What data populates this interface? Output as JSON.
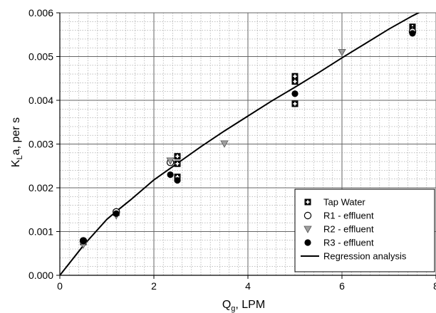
{
  "chart_data": {
    "type": "scatter",
    "title": "",
    "xlabel_main": "Q",
    "xlabel_sub": "g",
    "xlabel_rest": ", LPM",
    "ylabel_main": "K",
    "ylabel_sub": "L",
    "ylabel_rest": "a, per s",
    "xlim": [
      0,
      8
    ],
    "ylim": [
      0,
      0.006
    ],
    "x_ticks": [
      0,
      2,
      4,
      6,
      8
    ],
    "x_tick_labels": [
      "0",
      "2",
      "4",
      "6",
      "8"
    ],
    "y_ticks": [
      0,
      0.001,
      0.002,
      0.003,
      0.004,
      0.005,
      0.006
    ],
    "y_tick_labels": [
      "0.000",
      "0.001",
      "0.002",
      "0.003",
      "0.004",
      "0.005",
      "0.006"
    ],
    "grid": {
      "major": true,
      "minor": true,
      "minor_x_step": 0.2,
      "minor_y_step": 0.0002
    },
    "legend_position": "bottom-right",
    "series": [
      {
        "name": "Tap Water",
        "marker": "square-cross",
        "points": [
          [
            0.5,
            0.00076
          ],
          [
            1.2,
            0.00143
          ],
          [
            2.5,
            0.00272
          ],
          [
            2.5,
            0.00255
          ],
          [
            2.5,
            0.00225
          ],
          [
            5.0,
            0.00455
          ],
          [
            5.0,
            0.00443
          ],
          [
            5.0,
            0.00392
          ],
          [
            7.5,
            0.00568
          ],
          [
            7.5,
            0.00562
          ]
        ]
      },
      {
        "name": "R1 - effluent",
        "marker": "open-circle",
        "points": [
          [
            0.5,
            0.00079
          ],
          [
            1.2,
            0.00145
          ],
          [
            2.35,
            0.00258
          ],
          [
            7.5,
            0.00557
          ]
        ]
      },
      {
        "name": "R2 - effluent",
        "marker": "triangle-down",
        "points": [
          [
            0.5,
            0.0007
          ],
          [
            1.2,
            0.00137
          ],
          [
            2.35,
            0.00262
          ],
          [
            3.5,
            0.00301
          ],
          [
            6.0,
            0.0051
          ]
        ]
      },
      {
        "name": "R3 - effluent",
        "marker": "filled-circle",
        "points": [
          [
            0.5,
            0.00078
          ],
          [
            1.2,
            0.00141
          ],
          [
            2.35,
            0.0023
          ],
          [
            2.5,
            0.00217
          ],
          [
            5.0,
            0.00415
          ],
          [
            7.5,
            0.00553
          ]
        ]
      },
      {
        "name": "Regression analysis",
        "marker": "line",
        "points": [
          [
            0,
            0
          ],
          [
            0.5,
            0.00068
          ],
          [
            1.0,
            0.00128
          ],
          [
            1.2,
            0.00146
          ],
          [
            1.5,
            0.00172
          ],
          [
            2.0,
            0.00218
          ],
          [
            2.5,
            0.00256
          ],
          [
            3.0,
            0.00294
          ],
          [
            3.5,
            0.0033
          ],
          [
            4.0,
            0.00364
          ],
          [
            4.5,
            0.00398
          ],
          [
            5.0,
            0.0043
          ],
          [
            5.5,
            0.00463
          ],
          [
            6.0,
            0.00497
          ],
          [
            6.5,
            0.0053
          ],
          [
            7.0,
            0.00563
          ],
          [
            7.5,
            0.00593
          ],
          [
            8.0,
            0.0062
          ]
        ]
      }
    ]
  }
}
